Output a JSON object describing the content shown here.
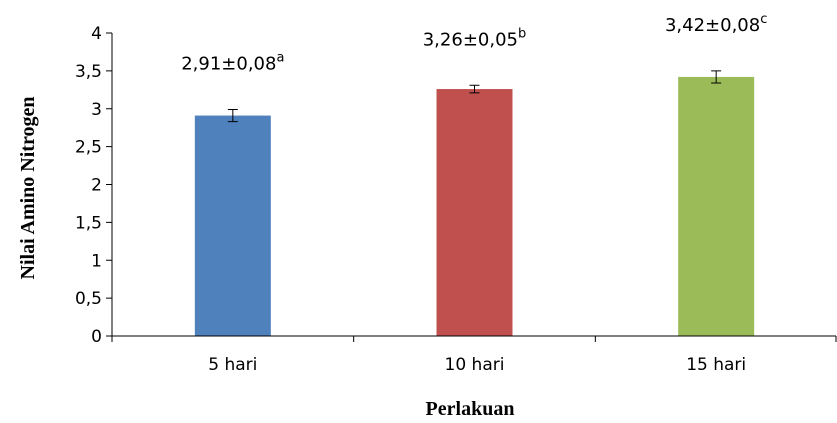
{
  "chart_data": {
    "type": "bar",
    "categories": [
      "5 hari",
      "10 hari",
      "15 hari"
    ],
    "values": [
      2.91,
      3.26,
      3.42
    ],
    "errors": [
      0.08,
      0.05,
      0.08
    ],
    "data_labels": [
      {
        "text": "2,91±0,08",
        "sup": "a"
      },
      {
        "text": "3,26±0,05",
        "sup": "b"
      },
      {
        "text": "3,42±0,08",
        "sup": "c"
      }
    ],
    "bar_colors": [
      "#4f81bd",
      "#c0504d",
      "#9bbb59"
    ],
    "xlabel": "Perlakuan",
    "ylabel": "Nilai  Amino  Nitrogen",
    "ylim": [
      0,
      4
    ],
    "yticks": [
      {
        "value": 0,
        "label": "0"
      },
      {
        "value": 0.5,
        "label": "0,5"
      },
      {
        "value": 1,
        "label": "1"
      },
      {
        "value": 1.5,
        "label": "1,5"
      },
      {
        "value": 2,
        "label": "2"
      },
      {
        "value": 2.5,
        "label": "2,5"
      },
      {
        "value": 3,
        "label": "3"
      },
      {
        "value": 3.5,
        "label": "3,5"
      },
      {
        "value": 4,
        "label": "4"
      }
    ],
    "grid": false,
    "legend": "none"
  }
}
